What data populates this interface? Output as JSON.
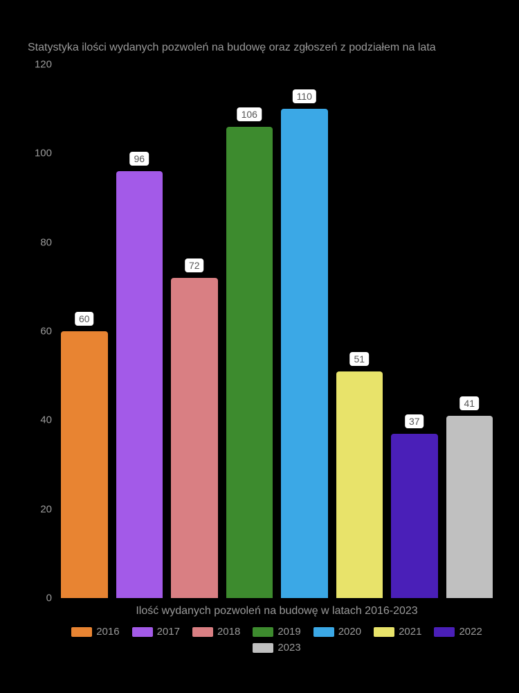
{
  "chart": {
    "type": "bar",
    "title": "Statystyka ilości wydanych pozwoleń na budowę oraz zgłoszeń z podziałem na lata",
    "title_color": "#9a9a9a",
    "title_fontsize": 16,
    "background_color": "#000000",
    "text_color": "#9a9a9a",
    "xlabel": "Ilość wydanych pozwoleń na budowę w latach 2016-2023",
    "ylim": [
      0,
      120
    ],
    "ytick_step": 20,
    "yticks": [
      0,
      20,
      40,
      60,
      80,
      100,
      120
    ],
    "bar_width": 0.85,
    "bar_gap": 12,
    "value_label_bg": "#ffffff",
    "value_label_color": "#555555",
    "value_label_fontsize": 14,
    "axis_fontsize": 15,
    "series": [
      {
        "year": "2016",
        "value": 60,
        "color": "#e88432"
      },
      {
        "year": "2017",
        "value": 96,
        "color": "#a35ae8"
      },
      {
        "year": "2018",
        "value": 72,
        "color": "#d97f83"
      },
      {
        "year": "2019",
        "value": 106,
        "color": "#3d8b2e"
      },
      {
        "year": "2020",
        "value": 110,
        "color": "#3ba8e6"
      },
      {
        "year": "2021",
        "value": 51,
        "color": "#e8e36a"
      },
      {
        "year": "2022",
        "value": 37,
        "color": "#4a1fb8"
      },
      {
        "year": "2023",
        "value": 41,
        "color": "#c0c0c0"
      }
    ]
  }
}
